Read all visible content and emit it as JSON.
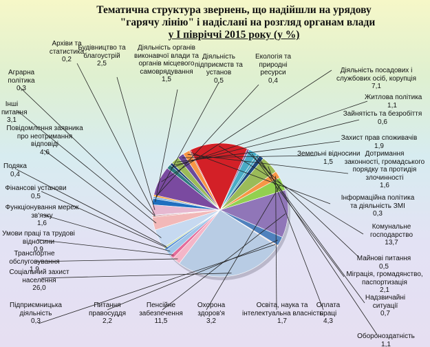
{
  "chart_data": {
    "type": "pie",
    "title": "Тематична структура звернень, що надійшли на урядову \"гарячу лінію\" і надіслані на розгляд органам влади у І півріччі 2015 року (у %)",
    "title_lines": [
      "Тематична структура звернень, що надійшли на урядову",
      "\"гарячу лінію\" і надіслані на розгляд органам влади",
      "у І півріччі 2015 року (у %)"
    ],
    "slices": [
      {
        "label": "Діяльність підприємств та установ",
        "value": 0.5,
        "value_text": "0,5",
        "color": "#7fb0dd"
      },
      {
        "label": "Екологія та природні ресурси",
        "value": 0.4,
        "value_text": "0,4",
        "color": "#f7941d"
      },
      {
        "label": "Діяльність посадових і службових осіб, корупція",
        "value": 7.1,
        "value_text": "7,1",
        "color": "#7a4aa0"
      },
      {
        "label": "Житлова політика",
        "value": 1.1,
        "value_text": "1,1",
        "color": "#2e7c7e"
      },
      {
        "label": "Зайнятість та безробіття",
        "value": 0.6,
        "value_text": "0,6",
        "color": "#1f3f78"
      },
      {
        "label": "Захист прав споживачів",
        "value": 1.9,
        "value_text": "1,9",
        "color": "#9bbb59"
      },
      {
        "label": "Земельні відносини",
        "value": 1.5,
        "value_text": "1,5",
        "color": "#6b4a9b"
      },
      {
        "label": "Дотримання законності, громадського порядку та протидія злочинності",
        "value": 1.6,
        "value_text": "1,6",
        "color": "#f79646"
      },
      {
        "label": "Інформаційна політика та діяльність ЗМІ",
        "value": 0.3,
        "value_text": "0,3",
        "color": "#c0504d"
      },
      {
        "label": "Комунальне господарство",
        "value": 13.7,
        "value_text": "13,7",
        "color": "#d32027"
      },
      {
        "label": "Майнові питання",
        "value": 0.5,
        "value_text": "0,5",
        "color": "#8064a2"
      },
      {
        "label": "Міграція, громадянство, паспортизація",
        "value": 2.1,
        "value_text": "2,1",
        "color": "#4aacc6"
      },
      {
        "label": "Надзвичайні ситуації",
        "value": 0.7,
        "value_text": "0,7",
        "color": "#4bacc6"
      },
      {
        "label": "Обороноздатність",
        "value": 1.1,
        "value_text": "1,1",
        "color": "#1f497d"
      },
      {
        "label": "Оплата праці",
        "value": 4.3,
        "value_text": "4,3",
        "color": "#9bbb59"
      },
      {
        "label": "Освіта, наука та інтелектуальна власність",
        "value": 1.7,
        "value_text": "1,7",
        "color": "#f79646"
      },
      {
        "label": "Охорона здоров'я",
        "value": 3.2,
        "value_text": "3,2",
        "color": "#92d050"
      },
      {
        "label": "Пенсійне забезпечення",
        "value": 11.5,
        "value_text": "11,5",
        "color": "#9076b8"
      },
      {
        "label": "Питання правосуддя",
        "value": 2.2,
        "value_text": "2,2",
        "color": "#4f81bd"
      },
      {
        "label": "Підприємницька діяльність",
        "value": 0.3,
        "value_text": "0,3",
        "color": "#f2dcdb"
      },
      {
        "label": "Соціальний захист населення",
        "value": 26.0,
        "value_text": "26,0",
        "color": "#b8cce4"
      },
      {
        "label": "Транспортне обслуговування",
        "value": 1.9,
        "value_text": "1,9",
        "color": "#f4b6c8"
      },
      {
        "label": "Умови праці та трудові відносини",
        "value": 0.9,
        "value_text": "0,9",
        "color": "#e46c9a"
      },
      {
        "label": "Функціонування мереж зв'язку",
        "value": 1.6,
        "value_text": "1,6",
        "color": "#9fc5e8"
      },
      {
        "label": "Фінансові установи",
        "value": 0.5,
        "value_text": "0,5",
        "color": "#538dd5"
      },
      {
        "label": "Подяка",
        "value": 0.4,
        "value_text": "0,4",
        "color": "#c4d79b"
      },
      {
        "label": "Повідомлення заявника про неотримання відповіді",
        "value": 4.6,
        "value_text": "4,6",
        "color": "#c6d9f0"
      },
      {
        "label": "Інші питання",
        "value": 3.1,
        "value_text": "3,1",
        "color": "#f2b8b8"
      },
      {
        "label": "Аграрна політика",
        "value": 0.3,
        "value_text": "0,3",
        "color": "#d99694"
      },
      {
        "label": "Архіви та статистика",
        "value": 0.2,
        "value_text": "0,2",
        "color": "#b3a2c7"
      },
      {
        "label": "Будівництво та благоустрій",
        "value": 2.5,
        "value_text": "2,5",
        "color": "#e6b8d0"
      },
      {
        "label": "Діяльність органів виконавчої влади та органів місцевого самоврядування",
        "value": 1.5,
        "value_text": "1,5",
        "color": "#1f6fbf"
      }
    ]
  }
}
